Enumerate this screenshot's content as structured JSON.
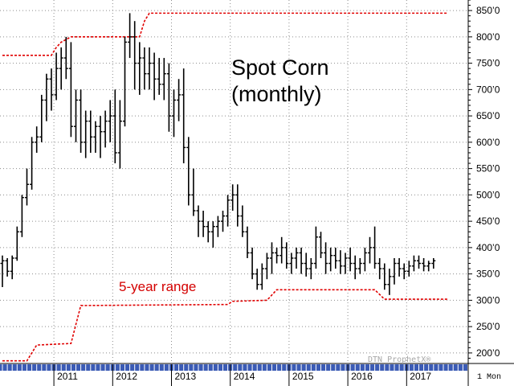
{
  "chart_data": {
    "type": "ohlc",
    "title": "Spot Corn",
    "subtitle": "(monthly)",
    "annotation": "5-year range",
    "period_label": "1 Mon",
    "watermark": "DTN ProphetX®",
    "ylim": [
      180,
      870
    ],
    "y_ticks": [
      200,
      250,
      300,
      350,
      400,
      450,
      500,
      550,
      600,
      650,
      700,
      750,
      800,
      850
    ],
    "y_tick_labels": [
      "200’0",
      "250’0",
      "300’0",
      "350’0",
      "400’0",
      "450’0",
      "500’0",
      "550’0",
      "600’0",
      "650’0",
      "700’0",
      "750’0",
      "800’0",
      "850’0"
    ],
    "x_tick_labels": [
      "2011",
      "2012",
      "2013",
      "2014",
      "2015",
      "2016",
      "2017"
    ],
    "x_start": "2010-02",
    "grid": true,
    "colors": {
      "bars": "#000000",
      "range": "#e00000",
      "grid": "#8c8c8c",
      "annotation": "#d40000",
      "axis_strip": "#3b5bb5"
    },
    "series": [
      {
        "kind": "ohlc",
        "name": "",
        "values": [
          [
            370,
            385,
            325,
            375
          ],
          [
            375,
            380,
            345,
            355
          ],
          [
            355,
            385,
            340,
            380
          ],
          [
            380,
            440,
            375,
            430
          ],
          [
            430,
            500,
            420,
            495
          ],
          [
            495,
            550,
            480,
            520
          ],
          [
            520,
            610,
            510,
            600
          ],
          [
            600,
            630,
            580,
            610
          ],
          [
            610,
            690,
            600,
            680
          ],
          [
            680,
            730,
            640,
            720
          ],
          [
            720,
            740,
            660,
            690
          ],
          [
            690,
            770,
            680,
            740
          ],
          [
            740,
            780,
            700,
            760
          ],
          [
            760,
            800,
            720,
            740
          ],
          [
            740,
            790,
            610,
            630
          ],
          [
            630,
            700,
            600,
            680
          ],
          [
            680,
            700,
            580,
            600
          ],
          [
            600,
            660,
            570,
            640
          ],
          [
            640,
            660,
            580,
            610
          ],
          [
            610,
            640,
            580,
            630
          ],
          [
            630,
            650,
            570,
            620
          ],
          [
            620,
            660,
            590,
            640
          ],
          [
            640,
            680,
            600,
            650
          ],
          [
            650,
            700,
            560,
            580
          ],
          [
            580,
            680,
            550,
            640
          ],
          [
            640,
            800,
            630,
            790
          ],
          [
            790,
            845,
            760,
            800
          ],
          [
            800,
            830,
            700,
            750
          ],
          [
            750,
            790,
            690,
            760
          ],
          [
            760,
            780,
            700,
            730
          ],
          [
            730,
            780,
            700,
            750
          ],
          [
            750,
            770,
            680,
            720
          ],
          [
            720,
            760,
            690,
            710
          ],
          [
            710,
            760,
            680,
            730
          ],
          [
            730,
            750,
            620,
            650
          ],
          [
            650,
            700,
            610,
            680
          ],
          [
            680,
            720,
            640,
            690
          ],
          [
            690,
            740,
            560,
            590
          ],
          [
            590,
            610,
            480,
            500
          ],
          [
            500,
            550,
            460,
            470
          ],
          [
            470,
            480,
            420,
            450
          ],
          [
            450,
            470,
            420,
            440
          ],
          [
            440,
            450,
            410,
            430
          ],
          [
            430,
            450,
            400,
            440
          ],
          [
            440,
            460,
            420,
            450
          ],
          [
            450,
            470,
            430,
            460
          ],
          [
            460,
            500,
            440,
            490
          ],
          [
            490,
            520,
            470,
            500
          ],
          [
            500,
            520,
            440,
            460
          ],
          [
            460,
            480,
            420,
            430
          ],
          [
            430,
            440,
            380,
            390
          ],
          [
            390,
            400,
            340,
            350
          ],
          [
            350,
            360,
            320,
            330
          ],
          [
            330,
            370,
            320,
            360
          ],
          [
            360,
            390,
            340,
            380
          ],
          [
            380,
            410,
            350,
            390
          ],
          [
            390,
            400,
            370,
            385
          ],
          [
            385,
            420,
            370,
            400
          ],
          [
            400,
            410,
            360,
            370
          ],
          [
            370,
            390,
            350,
            380
          ],
          [
            380,
            400,
            360,
            390
          ],
          [
            390,
            400,
            350,
            370
          ],
          [
            370,
            390,
            345,
            360
          ],
          [
            360,
            380,
            340,
            370
          ],
          [
            370,
            440,
            360,
            420
          ],
          [
            420,
            430,
            380,
            390
          ],
          [
            390,
            410,
            350,
            370
          ],
          [
            370,
            400,
            355,
            385
          ],
          [
            385,
            400,
            360,
            375
          ],
          [
            375,
            395,
            350,
            365
          ],
          [
            365,
            390,
            350,
            380
          ],
          [
            380,
            400,
            355,
            370
          ],
          [
            370,
            385,
            340,
            360
          ],
          [
            360,
            380,
            350,
            370
          ],
          [
            370,
            400,
            355,
            390
          ],
          [
            390,
            420,
            370,
            400
          ],
          [
            400,
            440,
            360,
            370
          ],
          [
            370,
            380,
            340,
            360
          ],
          [
            360,
            370,
            320,
            330
          ],
          [
            330,
            360,
            310,
            345
          ],
          [
            345,
            380,
            330,
            370
          ],
          [
            370,
            380,
            345,
            360
          ],
          [
            360,
            370,
            340,
            355
          ],
          [
            355,
            375,
            345,
            365
          ],
          [
            365,
            385,
            355,
            375
          ],
          [
            375,
            385,
            360,
            370
          ],
          [
            370,
            380,
            355,
            365
          ],
          [
            365,
            375,
            355,
            370
          ],
          [
            370,
            380,
            360,
            375
          ]
        ]
      },
      {
        "kind": "range_high",
        "name": "",
        "points": [
          [
            "2010-02",
            765
          ],
          [
            "2010-12",
            765
          ],
          [
            "2011-01",
            780
          ],
          [
            "2011-02",
            790
          ],
          [
            "2011-04",
            800
          ],
          [
            "2012-06",
            800
          ],
          [
            "2012-07",
            830
          ],
          [
            "2012-08",
            845
          ],
          [
            "2017-09",
            845
          ]
        ]
      },
      {
        "kind": "range_low",
        "name": "",
        "points": [
          [
            "2010-02",
            185
          ],
          [
            "2010-07",
            185
          ],
          [
            "2010-09",
            215
          ],
          [
            "2011-04",
            218
          ],
          [
            "2011-06",
            290
          ],
          [
            "2013-12",
            292
          ],
          [
            "2014-01",
            298
          ],
          [
            "2014-08",
            300
          ],
          [
            "2014-10",
            320
          ],
          [
            "2016-06",
            320
          ],
          [
            "2016-08",
            302
          ],
          [
            "2017-09",
            302
          ]
        ]
      }
    ]
  }
}
